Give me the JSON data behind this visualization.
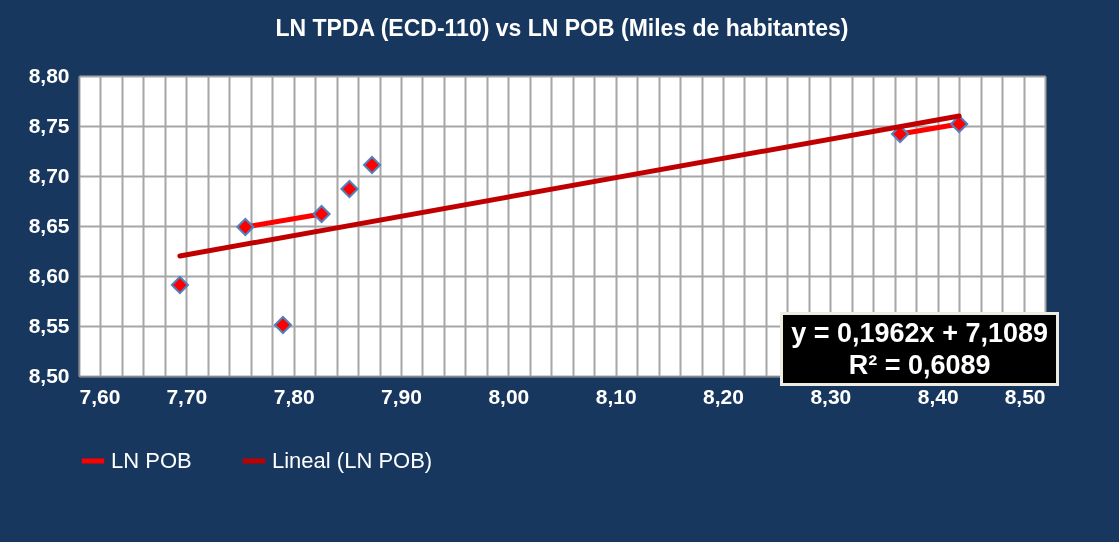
{
  "chart_data": {
    "type": "line",
    "title": "LN TPDA (ECD-110) vs LN POB (Miles de habitantes)",
    "series": [
      {
        "name": "LN POB",
        "color": "#ff0000",
        "marker": "diamond",
        "x": [
          7.694,
          null,
          7.79,
          null,
          7.755,
          7.826,
          null,
          7.852,
          null,
          7.873,
          null,
          8.365,
          8.42
        ],
        "values": [
          8.591,
          null,
          8.551,
          null,
          8.649,
          8.662,
          null,
          8.687,
          null,
          8.711,
          null,
          8.742,
          8.752
        ]
      },
      {
        "name": "Lineal (LN POB)",
        "color": "#c00000",
        "marker": "none",
        "x": [
          7.694,
          8.42
        ],
        "values": [
          8.62,
          8.76
        ]
      }
    ],
    "xlim": [
      7.6,
      8.5
    ],
    "xticks": [
      {
        "value": 7.6,
        "label": "7,60"
      },
      {
        "value": 7.62,
        "label": null
      },
      {
        "value": 7.64,
        "label": null
      },
      {
        "value": 7.66,
        "label": null
      },
      {
        "value": 7.68,
        "label": null
      },
      {
        "value": 7.7,
        "label": "7,70"
      },
      {
        "value": 7.72,
        "label": null
      },
      {
        "value": 7.74,
        "label": null
      },
      {
        "value": 7.76,
        "label": null
      },
      {
        "value": 7.78,
        "label": null
      },
      {
        "value": 7.8,
        "label": "7,80"
      },
      {
        "value": 7.82,
        "label": null
      },
      {
        "value": 7.84,
        "label": null
      },
      {
        "value": 7.86,
        "label": null
      },
      {
        "value": 7.88,
        "label": null
      },
      {
        "value": 7.9,
        "label": "7,90"
      },
      {
        "value": 7.92,
        "label": null
      },
      {
        "value": 7.94,
        "label": null
      },
      {
        "value": 7.96,
        "label": null
      },
      {
        "value": 7.98,
        "label": null
      },
      {
        "value": 8.0,
        "label": "8,00"
      },
      {
        "value": 8.02,
        "label": null
      },
      {
        "value": 8.04,
        "label": null
      },
      {
        "value": 8.06,
        "label": null
      },
      {
        "value": 8.08,
        "label": null
      },
      {
        "value": 8.1,
        "label": "8,10"
      },
      {
        "value": 8.12,
        "label": null
      },
      {
        "value": 8.14,
        "label": null
      },
      {
        "value": 8.16,
        "label": null
      },
      {
        "value": 8.18,
        "label": null
      },
      {
        "value": 8.2,
        "label": "8,20"
      },
      {
        "value": 8.22,
        "label": null
      },
      {
        "value": 8.24,
        "label": null
      },
      {
        "value": 8.26,
        "label": null
      },
      {
        "value": 8.28,
        "label": null
      },
      {
        "value": 8.3,
        "label": "8,30"
      },
      {
        "value": 8.32,
        "label": null
      },
      {
        "value": 8.34,
        "label": null
      },
      {
        "value": 8.36,
        "label": null
      },
      {
        "value": 8.38,
        "label": null
      },
      {
        "value": 8.4,
        "label": "8,40"
      },
      {
        "value": 8.42,
        "label": null
      },
      {
        "value": 8.44,
        "label": null
      },
      {
        "value": 8.46,
        "label": null
      },
      {
        "value": 8.48,
        "label": null
      },
      {
        "value": 8.5,
        "label": "8,50"
      }
    ],
    "ylim": [
      8.5,
      8.8
    ],
    "yticks": [
      {
        "value": 8.5,
        "label": "8,50"
      },
      {
        "value": 8.55,
        "label": "8,55"
      },
      {
        "value": 8.6,
        "label": "8,60"
      },
      {
        "value": 8.65,
        "label": "8,65"
      },
      {
        "value": 8.7,
        "label": "8,70"
      },
      {
        "value": 8.75,
        "label": "8,75"
      },
      {
        "value": 8.8,
        "label": "8,80"
      }
    ],
    "grid": true,
    "legend": "bottom",
    "annotations": [
      "y = 0,1962x + 7,1089",
      "R² = 0,6089"
    ]
  }
}
